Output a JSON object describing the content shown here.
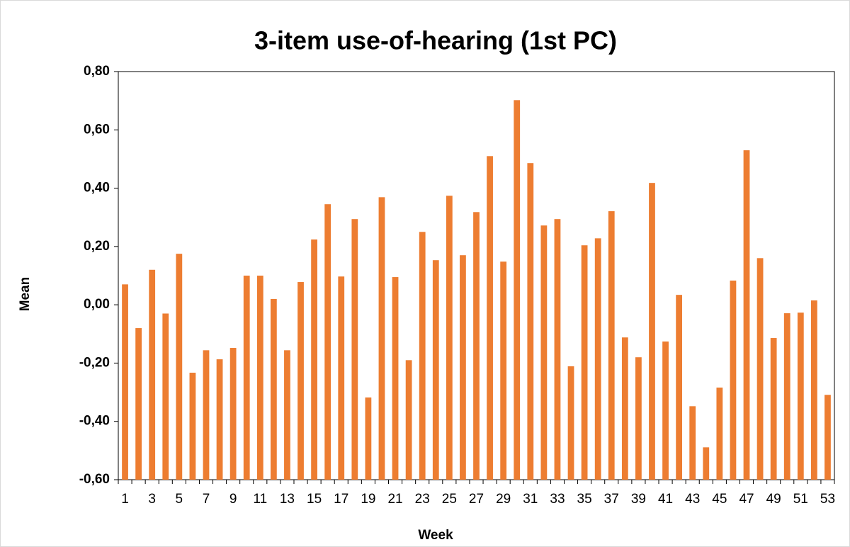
{
  "chart_data": {
    "type": "bar",
    "title": "3-item use-of-hearing  (1st PC)",
    "x_label": "Week",
    "y_label": "Mean",
    "categories": [
      "1",
      null,
      "3",
      null,
      "5",
      null,
      "7",
      null,
      "9",
      null,
      "11",
      null,
      "13",
      null,
      "15",
      null,
      "17",
      null,
      "19",
      null,
      "21",
      null,
      "23",
      null,
      "25",
      null,
      "27",
      null,
      "29",
      null,
      "31",
      null,
      "33",
      null,
      "35",
      null,
      "37",
      null,
      "39",
      null,
      "41",
      null,
      "43",
      null,
      "45",
      null,
      "47",
      null,
      "49",
      null,
      "51",
      null,
      "53"
    ],
    "values": [
      0.07,
      -0.08,
      0.12,
      -0.03,
      0.175,
      -0.233,
      -0.156,
      -0.187,
      -0.148,
      0.1,
      0.1,
      0.02,
      -0.156,
      0.078,
      0.224,
      0.345,
      0.097,
      0.294,
      -0.318,
      0.369,
      0.095,
      -0.19,
      0.25,
      0.153,
      0.374,
      0.17,
      0.318,
      0.51,
      0.148,
      0.702,
      0.486,
      0.272,
      0.294,
      -0.211,
      0.204,
      0.228,
      0.321,
      -0.112,
      -0.18,
      0.418,
      -0.126,
      0.034,
      -0.348,
      -0.489,
      -0.284,
      0.083,
      0.53,
      0.16,
      -0.114,
      -0.029,
      -0.027,
      0.015,
      -0.309
    ],
    "color": "#ED7D31",
    "ylim": [
      -0.6,
      0.8
    ],
    "yticks": [
      {
        "value": -0.6,
        "label": "-0,60"
      },
      {
        "value": -0.4,
        "label": "-0,40"
      },
      {
        "value": -0.2,
        "label": "-0,20"
      },
      {
        "value": 0,
        "label": "0,00"
      },
      {
        "value": 0.2,
        "label": "0,20"
      },
      {
        "value": 0.4,
        "label": "0,40"
      },
      {
        "value": 0.6,
        "label": "0,60"
      },
      {
        "value": 0.8,
        "label": "0,80"
      }
    ],
    "grid": false
  }
}
